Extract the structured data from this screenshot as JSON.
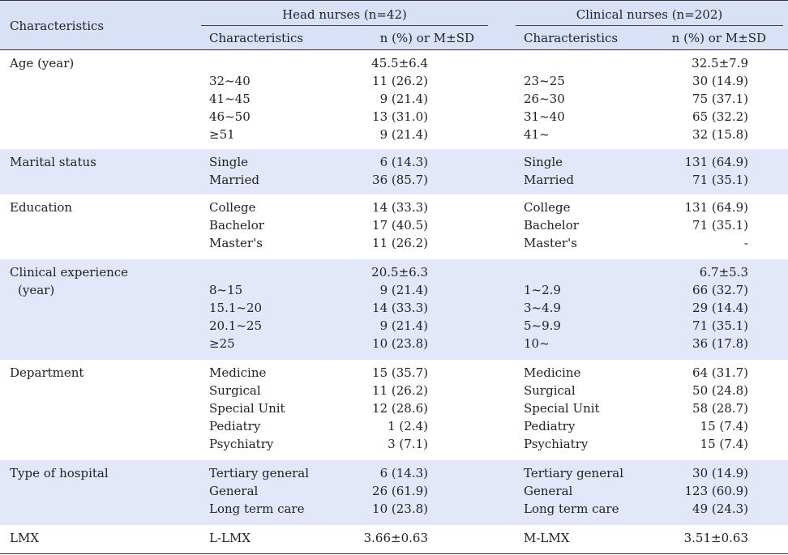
{
  "header": {
    "characteristics": "Characteristics",
    "head_group": "Head nurses (n=42)",
    "clin_group": "Clinical nurses (n=202)",
    "sub_char": "Characteristics",
    "sub_val": "n (%) or M±SD"
  },
  "groups": [
    {
      "label": "Age (year)",
      "rows": [
        [
          "",
          "45.5±6.4",
          "",
          "32.5±7.9"
        ],
        [
          "32~40",
          "11 (26.2)",
          "23~25",
          "30 (14.9)"
        ],
        [
          "41~45",
          "9 (21.4)",
          "26~30",
          "75 (37.1)"
        ],
        [
          "46~50",
          "13 (31.0)",
          "31~40",
          "65 (32.2)"
        ],
        [
          "≥51",
          "9 (21.4)",
          "41~",
          "32 (15.8)"
        ]
      ]
    },
    {
      "label": "Marital status",
      "rows": [
        [
          "Single",
          "6 (14.3)",
          "Single",
          "131 (64.9)"
        ],
        [
          "Married",
          "36 (85.7)",
          "Married",
          "71 (35.1)"
        ]
      ]
    },
    {
      "label": "Education",
      "rows": [
        [
          "College",
          "14 (33.3)",
          "College",
          "131 (64.9)"
        ],
        [
          "Bachelor",
          "17 (40.5)",
          "Bachelor",
          "71 (35.1)"
        ],
        [
          "Master's",
          "11 (26.2)",
          "Master's",
          "-"
        ]
      ]
    },
    {
      "label": "Clinical experience",
      "label2": "(year)",
      "rows": [
        [
          "",
          "20.5±6.3",
          "",
          "6.7±5.3"
        ],
        [
          "8~15",
          "9 (21.4)",
          "1~2.9",
          "66 (32.7)"
        ],
        [
          "15.1~20",
          "14 (33.3)",
          "3~4.9",
          "29 (14.4)"
        ],
        [
          "20.1~25",
          "9 (21.4)",
          "5~9.9",
          "71 (35.1)"
        ],
        [
          "≥25",
          "10 (23.8)",
          "10~",
          "36 (17.8)"
        ]
      ]
    },
    {
      "label": "Department",
      "rows": [
        [
          "Medicine",
          "15 (35.7)",
          "Medicine",
          "64 (31.7)"
        ],
        [
          "Surgical",
          "11 (26.2)",
          "Surgical",
          "50 (24.8)"
        ],
        [
          "Special Unit",
          "12 (28.6)",
          "Special Unit",
          "58 (28.7)"
        ],
        [
          "Pediatry",
          "1 (2.4)",
          "Pediatry",
          "15 (7.4)"
        ],
        [
          "Psychiatry",
          "3 (7.1)",
          "Psychiatry",
          "15 (7.4)"
        ]
      ]
    },
    {
      "label": "Type of hospital",
      "rows": [
        [
          "Tertiary general",
          "6 (14.3)",
          "Tertiary general",
          "30 (14.9)"
        ],
        [
          "General",
          "26 (61.9)",
          "General",
          "123 (60.9)"
        ],
        [
          "Long term care",
          "10 (23.8)",
          "Long term care",
          "49 (24.3)"
        ]
      ]
    },
    {
      "label": "LMX",
      "rows": [
        [
          "L-LMX",
          "3.66±0.63",
          "M-LMX",
          "3.51±0.63"
        ]
      ]
    }
  ]
}
